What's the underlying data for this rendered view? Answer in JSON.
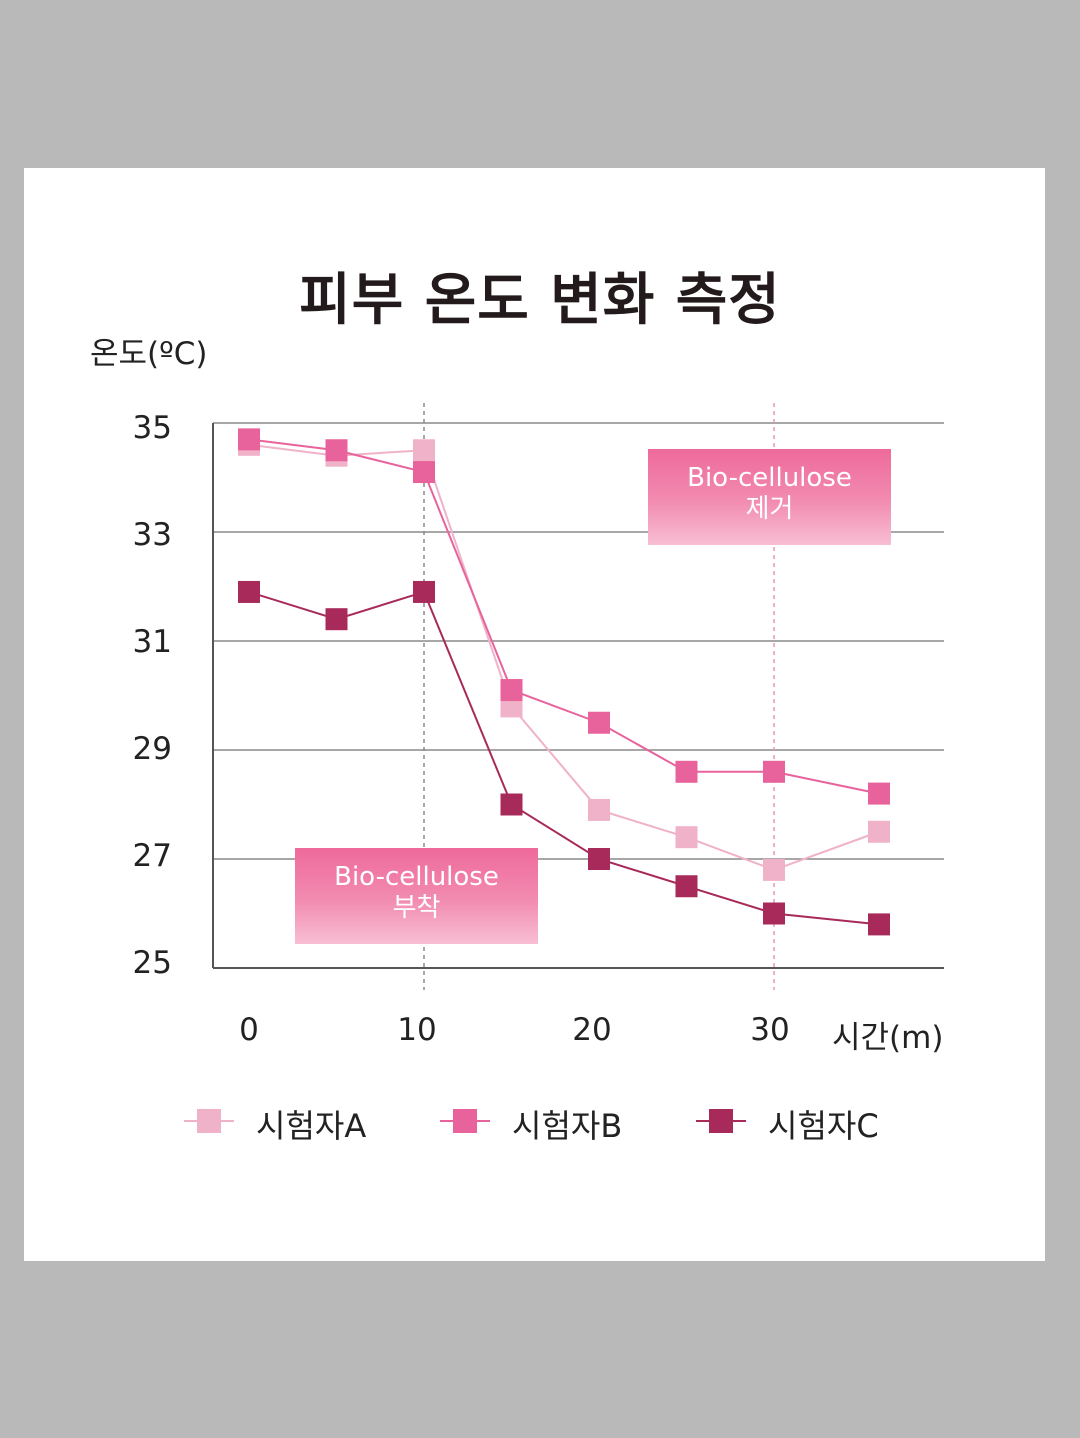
{
  "chart_data": {
    "type": "line",
    "title": "피부 온도 변화 측정",
    "ylabel": "온도(ºC)",
    "xlabel": "시간(m)",
    "ylim": [
      25,
      35
    ],
    "xlim": [
      0,
      36
    ],
    "yticks": [
      "35",
      "33",
      "31",
      "29",
      "27",
      "25"
    ],
    "xticks": [
      "0",
      "10",
      "20",
      "30"
    ],
    "grid": "horizontal",
    "legend_position": "bottom",
    "x": [
      0,
      5,
      10,
      15,
      20,
      25,
      30,
      36
    ],
    "series": [
      {
        "name": "시험자A",
        "color": "#f0b2c8",
        "values": [
          34.6,
          34.4,
          34.5,
          29.8,
          27.9,
          27.4,
          26.8,
          27.5
        ]
      },
      {
        "name": "시험자B",
        "color": "#e8639b",
        "values": [
          34.7,
          34.5,
          34.1,
          30.1,
          29.5,
          28.6,
          28.6,
          28.2
        ]
      },
      {
        "name": "시험자C",
        "color": "#a82a5a",
        "values": [
          31.9,
          31.4,
          31.9,
          28.0,
          27.0,
          26.5,
          26.0,
          25.8
        ]
      }
    ],
    "vlines": [
      10,
      30
    ],
    "annotations": [
      {
        "text": "Bio-cellulose",
        "text2": "제거"
      },
      {
        "text": "Bio-cellulose",
        "text2": "부착"
      }
    ]
  }
}
